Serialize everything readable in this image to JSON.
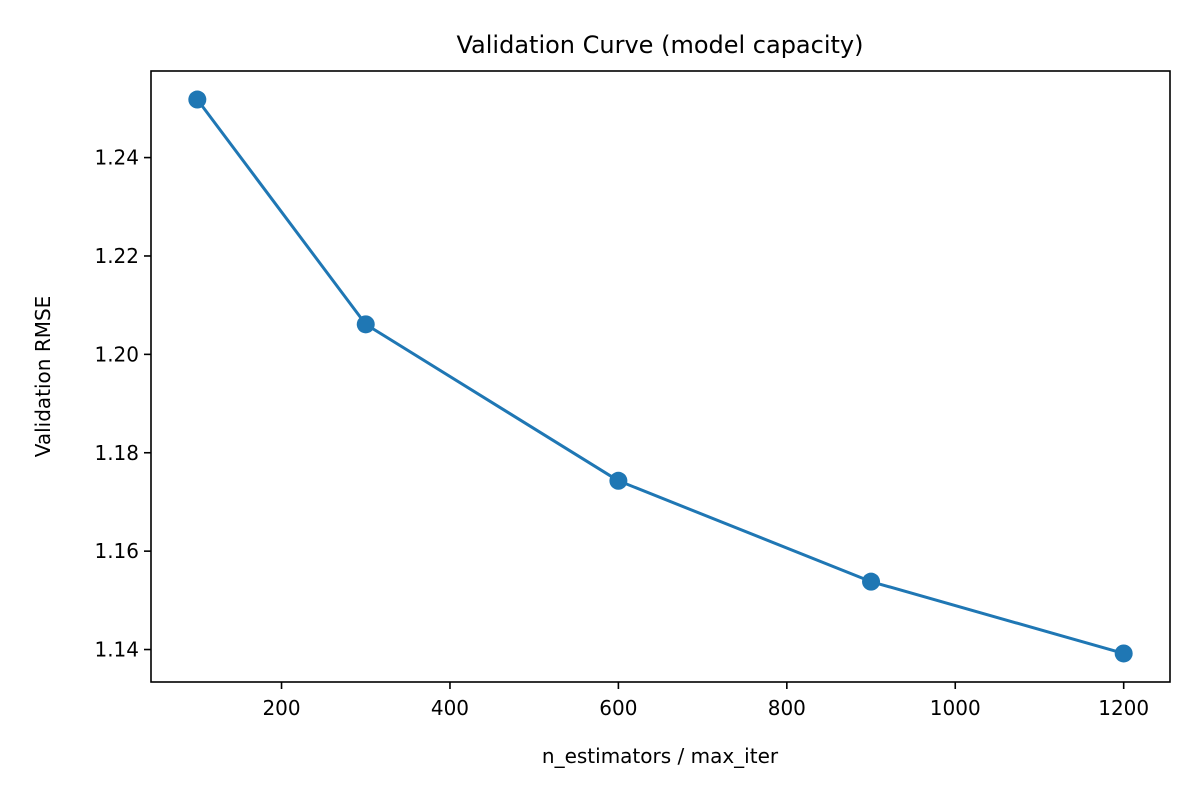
{
  "chart_data": {
    "type": "line",
    "title": "Validation Curve (model capacity)",
    "xlabel": "n_estimators / max_iter",
    "ylabel": "Validation RMSE",
    "x": [
      100,
      300,
      600,
      900,
      1200
    ],
    "series": [
      {
        "values": [
          1.2518,
          1.2061,
          1.1743,
          1.1538,
          1.1392
        ],
        "color": "#1f77b4",
        "marker": "circle"
      }
    ],
    "xlim": [
      45,
      1255
    ],
    "ylim": [
      1.1334,
      1.2576
    ],
    "xticks": [
      200,
      400,
      600,
      800,
      1000,
      1200
    ],
    "xtick_labels": [
      "200",
      "400",
      "600",
      "800",
      "1000",
      "1200"
    ],
    "yticks": [
      1.14,
      1.16,
      1.18,
      1.2,
      1.22,
      1.24
    ],
    "ytick_labels": [
      "1.14",
      "1.16",
      "1.18",
      "1.20",
      "1.22",
      "1.24"
    ],
    "grid": false,
    "legend": "none"
  }
}
